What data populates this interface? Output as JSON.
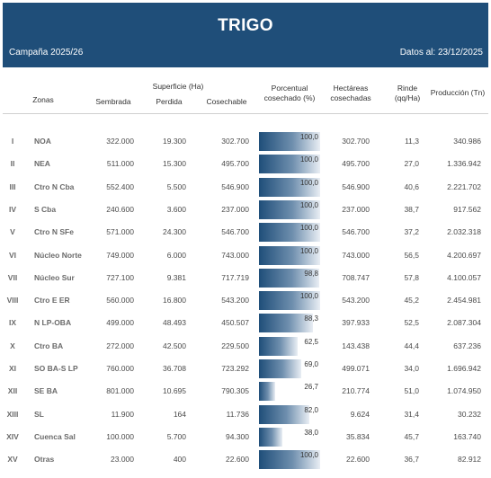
{
  "header": {
    "title": "TRIGO",
    "campaign": "Campaña 2025/26",
    "date": "Datos al: 23/12/2025"
  },
  "columns": {
    "zonas": "Zonas",
    "superficie": "Superficie (Ha)",
    "sembrada": "Sembrada",
    "perdida": "Perdida",
    "cosechable": "Cosechable",
    "porcentual_1": "Porcentual",
    "porcentual_2": "cosechado (%)",
    "hectareas_1": "Hectáreas",
    "hectareas_2": "cosechadas",
    "rinde_1": "Rinde",
    "rinde_2": "(qq/Ha)",
    "produccion": "Producción (Tn)"
  },
  "colors": {
    "header_bg": "#1f4e79",
    "bar_dark": "#1f4e79"
  },
  "rows": [
    {
      "num": "I",
      "zona": "NOA",
      "sembrada": "322.000",
      "perdida": "19.300",
      "cosechable": "302.700",
      "pct": "100,0",
      "pct_value": 100.0,
      "hectareas": "302.700",
      "rinde": "11,3",
      "produccion": "340.986"
    },
    {
      "num": "II",
      "zona": "NEA",
      "sembrada": "511.000",
      "perdida": "15.300",
      "cosechable": "495.700",
      "pct": "100,0",
      "pct_value": 100.0,
      "hectareas": "495.700",
      "rinde": "27,0",
      "produccion": "1.336.942"
    },
    {
      "num": "III",
      "zona": "Ctro N Cba",
      "sembrada": "552.400",
      "perdida": "5.500",
      "cosechable": "546.900",
      "pct": "100,0",
      "pct_value": 100.0,
      "hectareas": "546.900",
      "rinde": "40,6",
      "produccion": "2.221.702"
    },
    {
      "num": "IV",
      "zona": "S Cba",
      "sembrada": "240.600",
      "perdida": "3.600",
      "cosechable": "237.000",
      "pct": "100,0",
      "pct_value": 100.0,
      "hectareas": "237.000",
      "rinde": "38,7",
      "produccion": "917.562"
    },
    {
      "num": "V",
      "zona": "Ctro N SFe",
      "sembrada": "571.000",
      "perdida": "24.300",
      "cosechable": "546.700",
      "pct": "100,0",
      "pct_value": 100.0,
      "hectareas": "546.700",
      "rinde": "37,2",
      "produccion": "2.032.318"
    },
    {
      "num": "VI",
      "zona": "Núcleo Norte",
      "sembrada": "749.000",
      "perdida": "6.000",
      "cosechable": "743.000",
      "pct": "100,0",
      "pct_value": 100.0,
      "hectareas": "743.000",
      "rinde": "56,5",
      "produccion": "4.200.697"
    },
    {
      "num": "VII",
      "zona": "Núcleo Sur",
      "sembrada": "727.100",
      "perdida": "9.381",
      "cosechable": "717.719",
      "pct": "98,8",
      "pct_value": 98.8,
      "hectareas": "708.747",
      "rinde": "57,8",
      "produccion": "4.100.057"
    },
    {
      "num": "VIII",
      "zona": "Ctro E ER",
      "sembrada": "560.000",
      "perdida": "16.800",
      "cosechable": "543.200",
      "pct": "100,0",
      "pct_value": 100.0,
      "hectareas": "543.200",
      "rinde": "45,2",
      "produccion": "2.454.981"
    },
    {
      "num": "IX",
      "zona": "N LP-OBA",
      "sembrada": "499.000",
      "perdida": "48.493",
      "cosechable": "450.507",
      "pct": "88,3",
      "pct_value": 88.3,
      "hectareas": "397.933",
      "rinde": "52,5",
      "produccion": "2.087.304"
    },
    {
      "num": "X",
      "zona": "Ctro BA",
      "sembrada": "272.000",
      "perdida": "42.500",
      "cosechable": "229.500",
      "pct": "62,5",
      "pct_value": 62.5,
      "hectareas": "143.438",
      "rinde": "44,4",
      "produccion": "637.236"
    },
    {
      "num": "XI",
      "zona": "SO BA-S LP",
      "sembrada": "760.000",
      "perdida": "36.708",
      "cosechable": "723.292",
      "pct": "69,0",
      "pct_value": 69.0,
      "hectareas": "499.071",
      "rinde": "34,0",
      "produccion": "1.696.942"
    },
    {
      "num": "XII",
      "zona": "SE BA",
      "sembrada": "801.000",
      "perdida": "10.695",
      "cosechable": "790.305",
      "pct": "26,7",
      "pct_value": 26.7,
      "hectareas": "210.774",
      "rinde": "51,0",
      "produccion": "1.074.950"
    },
    {
      "num": "XIII",
      "zona": "SL",
      "sembrada": "11.900",
      "perdida": "164",
      "cosechable": "11.736",
      "pct": "82,0",
      "pct_value": 82.0,
      "hectareas": "9.624",
      "rinde": "31,4",
      "produccion": "30.232"
    },
    {
      "num": "XIV",
      "zona": "Cuenca Sal",
      "sembrada": "100.000",
      "perdida": "5.700",
      "cosechable": "94.300",
      "pct": "38,0",
      "pct_value": 38.0,
      "hectareas": "35.834",
      "rinde": "45,7",
      "produccion": "163.740"
    },
    {
      "num": "XV",
      "zona": "Otras",
      "sembrada": "23.000",
      "perdida": "400",
      "cosechable": "22.600",
      "pct": "100,0",
      "pct_value": 100.0,
      "hectareas": "22.600",
      "rinde": "36,7",
      "produccion": "82.912"
    }
  ]
}
